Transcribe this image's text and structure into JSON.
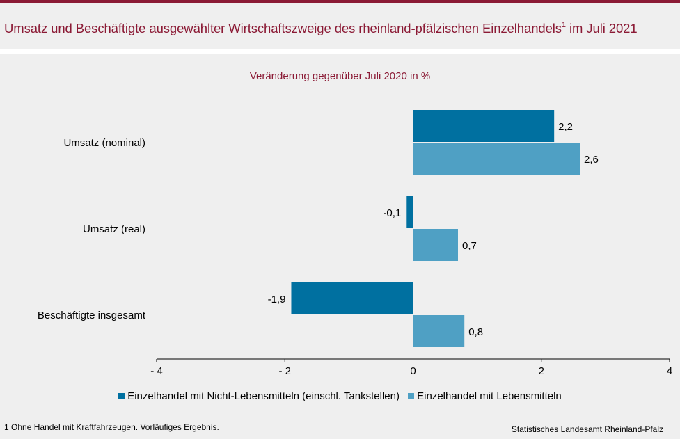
{
  "header": {
    "title": "Umsatz und Beschäftigte ausgewählter Wirtschaftszweige des rheinland-pfälzischen Einzelhandels",
    "title_sup": "1",
    "title_tail": " im Juli 2021"
  },
  "colors": {
    "accent": "#8b1a35",
    "series_1": "#0070a0",
    "series_2": "#4fa0c4"
  },
  "chart_data": {
    "type": "bar",
    "orientation": "horizontal",
    "subtitle": "Veränderung gegenüber Juli 2020 in %",
    "categories": [
      "Umsatz (nominal)",
      "Umsatz (real)",
      "Beschäftigte insgesamt"
    ],
    "series": [
      {
        "name": "Einzelhandel mit Nicht-Lebensmitteln (einschl. Tankstellen)",
        "values": [
          2.2,
          -0.1,
          -1.9
        ],
        "labels": [
          "2,2",
          "-0,1",
          "-1,9"
        ]
      },
      {
        "name": "Einzelhandel mit Lebensmitteln",
        "values": [
          2.6,
          0.7,
          0.8
        ],
        "labels": [
          "2,6",
          "0,7",
          "0,8"
        ]
      }
    ],
    "xlim": [
      -4,
      4
    ],
    "xticks": [
      -4,
      -2,
      0,
      2,
      4
    ],
    "xtick_labels": [
      "- 4",
      "- 2",
      "0",
      "2",
      "4"
    ],
    "grid": false,
    "legend": "bottom"
  },
  "footer": {
    "footnote": "1 Ohne Handel mit Kraftfahrzeugen. Vorläufiges Ergebnis.",
    "source": "Statistisches Landesamt Rheinland-Pfalz"
  }
}
